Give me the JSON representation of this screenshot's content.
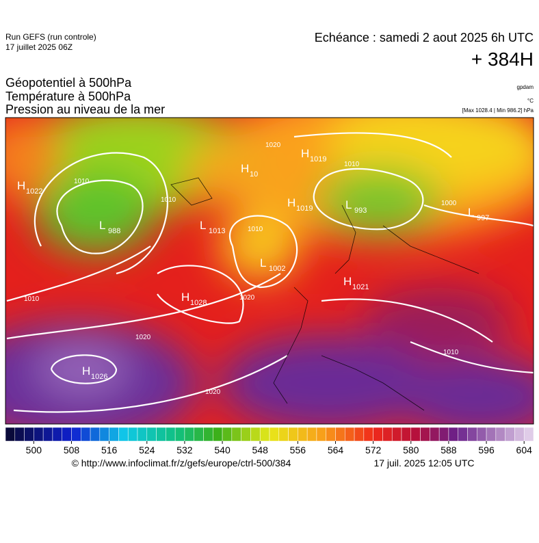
{
  "header": {
    "run": "Run GEFS (run controle)",
    "run_date": "17 juillet 2025 06Z",
    "valid": "Echéance : samedi 2 aout 2025 6h UTC",
    "lead": "+ 384H"
  },
  "titles": [
    "Géopotentiel à 500hPa",
    "Température à 500hPa",
    "Pression au niveau de la mer"
  ],
  "units": {
    "geopotential": "gpdam",
    "temperature": "°C",
    "pressure": "[Max 1028.4 | Min 986.2] hPa"
  },
  "pressure_centers": [
    {
      "letter": "H",
      "value": "1022"
    },
    {
      "letter": "L",
      "value": "988"
    },
    {
      "letter": "H",
      "value": "10"
    },
    {
      "letter": "H",
      "value": "1019"
    },
    {
      "letter": "L",
      "value": "1013"
    },
    {
      "letter": "H",
      "value": "1019"
    },
    {
      "letter": "L",
      "value": "993"
    },
    {
      "letter": "L",
      "value": "997"
    },
    {
      "letter": "L",
      "value": "1002"
    },
    {
      "letter": "H",
      "value": "1021"
    },
    {
      "letter": "H",
      "value": "1028"
    },
    {
      "letter": "H",
      "value": "1026"
    }
  ],
  "isobar_labels": [
    "1010",
    "1010",
    "1010",
    "1020",
    "1020",
    "1020",
    "1020",
    "1010",
    "1010",
    "1010",
    "1000"
  ],
  "colorbar_ticks": [
    500,
    508,
    516,
    524,
    532,
    540,
    548,
    556,
    564,
    572,
    580,
    588,
    596,
    604
  ],
  "footer": {
    "source": "© http://www.infoclimat.fr/z/gefs/europe/ctrl-500/384",
    "generated": "17 juil. 2025 12:05 UTC"
  }
}
